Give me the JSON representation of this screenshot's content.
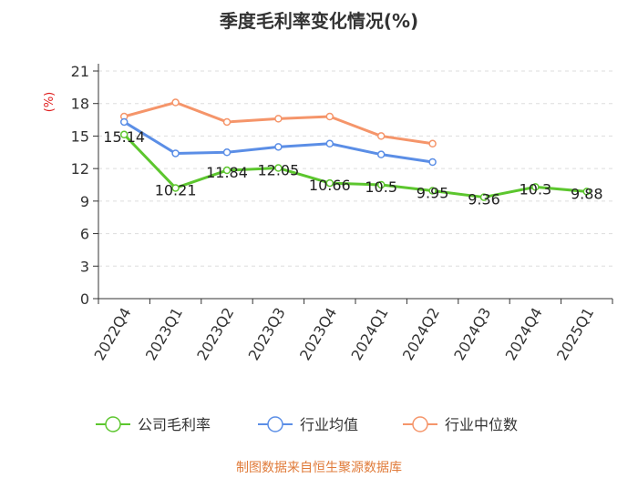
{
  "chart_data": {
    "type": "line",
    "title": "季度毛利率变化情况(%)",
    "ylabel": "(%)",
    "xlabel": "",
    "categories": [
      "2022Q4",
      "2023Q1",
      "2023Q2",
      "2023Q3",
      "2023Q4",
      "2024Q1",
      "2024Q2",
      "2024Q3",
      "2024Q4",
      "2025Q1"
    ],
    "yticks": [
      "0",
      "3",
      "6",
      "9",
      "12",
      "15",
      "18",
      "21"
    ],
    "ylim": [
      0,
      21
    ],
    "grid": true,
    "legend_position": "bottom",
    "series": [
      {
        "name": "公司毛利率",
        "color": "#5cc62e",
        "values": [
          15.14,
          10.21,
          11.84,
          12.05,
          10.66,
          10.5,
          9.95,
          9.36,
          10.3,
          9.88
        ],
        "labels": [
          "15.14",
          "10.21",
          "11.84",
          "12.05",
          "10.66",
          "10.5",
          "9.95",
          "9.36",
          "10.3",
          "9.88"
        ]
      },
      {
        "name": "行业均值",
        "color": "#5b8ee6",
        "values": [
          16.3,
          13.4,
          13.5,
          14.0,
          14.3,
          13.3,
          12.6,
          null,
          null,
          null
        ]
      },
      {
        "name": "行业中位数",
        "color": "#f5956a",
        "values": [
          16.8,
          18.1,
          16.3,
          16.6,
          16.8,
          15.0,
          14.3,
          null,
          null,
          null
        ]
      }
    ],
    "source": "制图数据来自恒生聚源数据库"
  }
}
